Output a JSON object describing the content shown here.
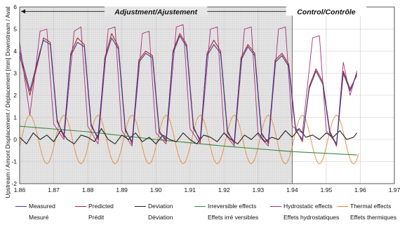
{
  "chart_data": {
    "type": "line",
    "ylabel": "Upstream / Amont          Displacement / Déplacement [mm]          Downstream / Aval",
    "xlim": [
      1.86,
      1.97
    ],
    "ylim": [
      -2,
      6
    ],
    "x_ticks": [
      "1.86",
      "1.87",
      "1.88",
      "1.89",
      "1.90",
      "1.91",
      "1.92",
      "1.93",
      "1.94",
      "1.95",
      "1.96",
      "1.97"
    ],
    "y_ticks": [
      "-2",
      "-1",
      "0",
      "1",
      "2",
      "3",
      "4",
      "5",
      "6"
    ],
    "phases": [
      {
        "label": "Adjustment/Ajustement",
        "from": 1.86,
        "to": 1.94,
        "shaded": true
      },
      {
        "label": "Control/Contrôle",
        "from": 1.94,
        "to": 1.96,
        "shaded": false
      }
    ],
    "cycle_peaks_x": [
      1.866,
      1.876,
      1.887,
      1.897,
      1.906,
      1.916,
      1.926,
      1.936,
      1.946,
      1.955
    ],
    "series": [
      {
        "name": "Measured",
        "name_fr": "Mesuré",
        "color": "#3a3f8c",
        "points": [
          [
            1.86,
            4.0
          ],
          [
            1.863,
            2.2
          ],
          [
            1.866,
            4.0
          ],
          [
            1.867,
            4.5
          ],
          [
            1.869,
            4.3
          ],
          [
            1.871,
            0.8
          ],
          [
            1.873,
            0.2
          ],
          [
            1.875,
            3.8
          ],
          [
            1.877,
            4.4
          ],
          [
            1.879,
            4.2
          ],
          [
            1.881,
            0.6
          ],
          [
            1.883,
            0.1
          ],
          [
            1.885,
            3.6
          ],
          [
            1.887,
            4.6
          ],
          [
            1.889,
            4.1
          ],
          [
            1.891,
            0.4
          ],
          [
            1.893,
            -0.1
          ],
          [
            1.895,
            3.5
          ],
          [
            1.897,
            3.9
          ],
          [
            1.899,
            3.7
          ],
          [
            1.901,
            0.3
          ],
          [
            1.903,
            0.0
          ],
          [
            1.905,
            3.9
          ],
          [
            1.907,
            4.7
          ],
          [
            1.909,
            4.2
          ],
          [
            1.911,
            0.5
          ],
          [
            1.913,
            0.0
          ],
          [
            1.915,
            3.8
          ],
          [
            1.917,
            4.3
          ],
          [
            1.919,
            3.9
          ],
          [
            1.921,
            0.3
          ],
          [
            1.923,
            -0.1
          ],
          [
            1.925,
            3.6
          ],
          [
            1.927,
            4.2
          ],
          [
            1.929,
            3.8
          ],
          [
            1.931,
            0.2
          ],
          [
            1.933,
            -0.1
          ],
          [
            1.935,
            3.5
          ],
          [
            1.937,
            3.8
          ],
          [
            1.939,
            3.3
          ],
          [
            1.941,
            0.4
          ],
          [
            1.943,
            0.0
          ],
          [
            1.945,
            2.3
          ],
          [
            1.947,
            3.1
          ],
          [
            1.949,
            2.5
          ],
          [
            1.951,
            0.3
          ],
          [
            1.953,
            -0.2
          ],
          [
            1.955,
            3.0
          ],
          [
            1.957,
            2.2
          ],
          [
            1.959,
            3.0
          ]
        ]
      },
      {
        "name": "Predicted",
        "name_fr": "Prédit",
        "color": "#b8232f",
        "points": [
          [
            1.86,
            3.8
          ],
          [
            1.863,
            2.0
          ],
          [
            1.866,
            3.9
          ],
          [
            1.867,
            4.6
          ],
          [
            1.869,
            4.4
          ],
          [
            1.871,
            0.9
          ],
          [
            1.873,
            0.1
          ],
          [
            1.875,
            3.9
          ],
          [
            1.877,
            4.6
          ],
          [
            1.879,
            4.3
          ],
          [
            1.881,
            0.7
          ],
          [
            1.883,
            0.0
          ],
          [
            1.885,
            3.7
          ],
          [
            1.887,
            4.8
          ],
          [
            1.889,
            4.2
          ],
          [
            1.891,
            0.5
          ],
          [
            1.893,
            -0.2
          ],
          [
            1.895,
            3.6
          ],
          [
            1.897,
            4.0
          ],
          [
            1.899,
            3.8
          ],
          [
            1.901,
            0.4
          ],
          [
            1.903,
            -0.1
          ],
          [
            1.905,
            4.0
          ],
          [
            1.907,
            4.8
          ],
          [
            1.909,
            4.3
          ],
          [
            1.911,
            0.6
          ],
          [
            1.913,
            -0.1
          ],
          [
            1.915,
            3.9
          ],
          [
            1.917,
            4.5
          ],
          [
            1.919,
            4.0
          ],
          [
            1.921,
            0.4
          ],
          [
            1.923,
            -0.2
          ],
          [
            1.925,
            3.7
          ],
          [
            1.927,
            4.3
          ],
          [
            1.929,
            3.9
          ],
          [
            1.931,
            0.3
          ],
          [
            1.933,
            -0.2
          ],
          [
            1.935,
            3.6
          ],
          [
            1.937,
            3.9
          ],
          [
            1.939,
            3.4
          ],
          [
            1.941,
            0.5
          ],
          [
            1.943,
            -0.1
          ],
          [
            1.945,
            2.4
          ],
          [
            1.947,
            3.2
          ],
          [
            1.949,
            2.6
          ],
          [
            1.951,
            0.4
          ],
          [
            1.953,
            -0.3
          ],
          [
            1.955,
            3.1
          ],
          [
            1.957,
            2.3
          ],
          [
            1.959,
            2.9
          ]
        ]
      },
      {
        "name": "Deviation",
        "name_fr": "Déviation",
        "color": "#222222",
        "points": [
          [
            1.86,
            0.1
          ],
          [
            1.862,
            -0.2
          ],
          [
            1.864,
            0.3
          ],
          [
            1.866,
            0.0
          ],
          [
            1.868,
            0.2
          ],
          [
            1.87,
            -0.1
          ],
          [
            1.872,
            0.4
          ],
          [
            1.874,
            0.0
          ],
          [
            1.876,
            -0.2
          ],
          [
            1.878,
            0.2
          ],
          [
            1.88,
            0.1
          ],
          [
            1.882,
            -0.1
          ],
          [
            1.884,
            0.5
          ],
          [
            1.886,
            0.0
          ],
          [
            1.888,
            -0.2
          ],
          [
            1.89,
            0.2
          ],
          [
            1.892,
            0.0
          ],
          [
            1.894,
            0.3
          ],
          [
            1.896,
            -0.1
          ],
          [
            1.898,
            0.1
          ],
          [
            1.9,
            -0.2
          ],
          [
            1.902,
            0.2
          ],
          [
            1.904,
            0.0
          ],
          [
            1.906,
            -0.1
          ],
          [
            1.908,
            0.3
          ],
          [
            1.91,
            0.0
          ],
          [
            1.912,
            -0.2
          ],
          [
            1.914,
            0.2
          ],
          [
            1.916,
            0.1
          ],
          [
            1.918,
            -0.1
          ],
          [
            1.92,
            0.3
          ],
          [
            1.922,
            0.0
          ],
          [
            1.924,
            -0.2
          ],
          [
            1.926,
            0.2
          ],
          [
            1.928,
            0.0
          ],
          [
            1.93,
            0.3
          ],
          [
            1.932,
            -0.1
          ],
          [
            1.934,
            0.1
          ],
          [
            1.936,
            0.0
          ],
          [
            1.938,
            0.4
          ],
          [
            1.94,
            0.1
          ],
          [
            1.942,
            0.5
          ],
          [
            1.944,
            0.1
          ],
          [
            1.946,
            0.2
          ],
          [
            1.948,
            0.0
          ],
          [
            1.95,
            0.3
          ],
          [
            1.952,
            0.1
          ],
          [
            1.954,
            0.4
          ],
          [
            1.956,
            0.0
          ],
          [
            1.958,
            0.1
          ],
          [
            1.959,
            0.3
          ]
        ]
      },
      {
        "name": "Irreversible effects",
        "name_fr": "Effets irré versibles",
        "color": "#3c8a3c",
        "points": [
          [
            1.86,
            0.6
          ],
          [
            1.88,
            0.35
          ],
          [
            1.9,
            0.0
          ],
          [
            1.92,
            -0.3
          ],
          [
            1.94,
            -0.55
          ],
          [
            1.959,
            -0.7
          ]
        ]
      },
      {
        "name": "Hydrostatic effects",
        "name_fr": "Effets hydrostatiques",
        "color": "#a8307a",
        "points": [
          [
            1.86,
            4.4
          ],
          [
            1.863,
            1.1
          ],
          [
            1.866,
            4.9
          ],
          [
            1.868,
            5.0
          ],
          [
            1.87,
            0.7
          ],
          [
            1.873,
            0.0
          ],
          [
            1.876,
            4.9
          ],
          [
            1.878,
            5.1
          ],
          [
            1.88,
            0.6
          ],
          [
            1.883,
            -0.2
          ],
          [
            1.886,
            5.0
          ],
          [
            1.888,
            5.1
          ],
          [
            1.89,
            0.4
          ],
          [
            1.893,
            -0.3
          ],
          [
            1.896,
            4.8
          ],
          [
            1.898,
            4.9
          ],
          [
            1.9,
            0.3
          ],
          [
            1.903,
            -0.2
          ],
          [
            1.906,
            5.1
          ],
          [
            1.908,
            5.2
          ],
          [
            1.91,
            0.5
          ],
          [
            1.913,
            -0.2
          ],
          [
            1.916,
            5.0
          ],
          [
            1.918,
            5.1
          ],
          [
            1.92,
            0.3
          ],
          [
            1.923,
            -0.3
          ],
          [
            1.926,
            5.0
          ],
          [
            1.928,
            5.1
          ],
          [
            1.93,
            0.2
          ],
          [
            1.933,
            -0.3
          ],
          [
            1.936,
            5.0
          ],
          [
            1.938,
            5.1
          ],
          [
            1.94,
            0.6
          ],
          [
            1.943,
            0.3
          ],
          [
            1.946,
            4.6
          ],
          [
            1.948,
            4.7
          ],
          [
            1.95,
            0.4
          ],
          [
            1.953,
            -0.2
          ],
          [
            1.955,
            3.5
          ],
          [
            1.957,
            2.0
          ],
          [
            1.959,
            3.1
          ]
        ]
      },
      {
        "name": "Thermal effects",
        "name_fr": "Effets thermiques",
        "color": "#e88a3a",
        "amplitude": 1.1,
        "period": 0.01,
        "phase_x": 1.863
      }
    ]
  }
}
